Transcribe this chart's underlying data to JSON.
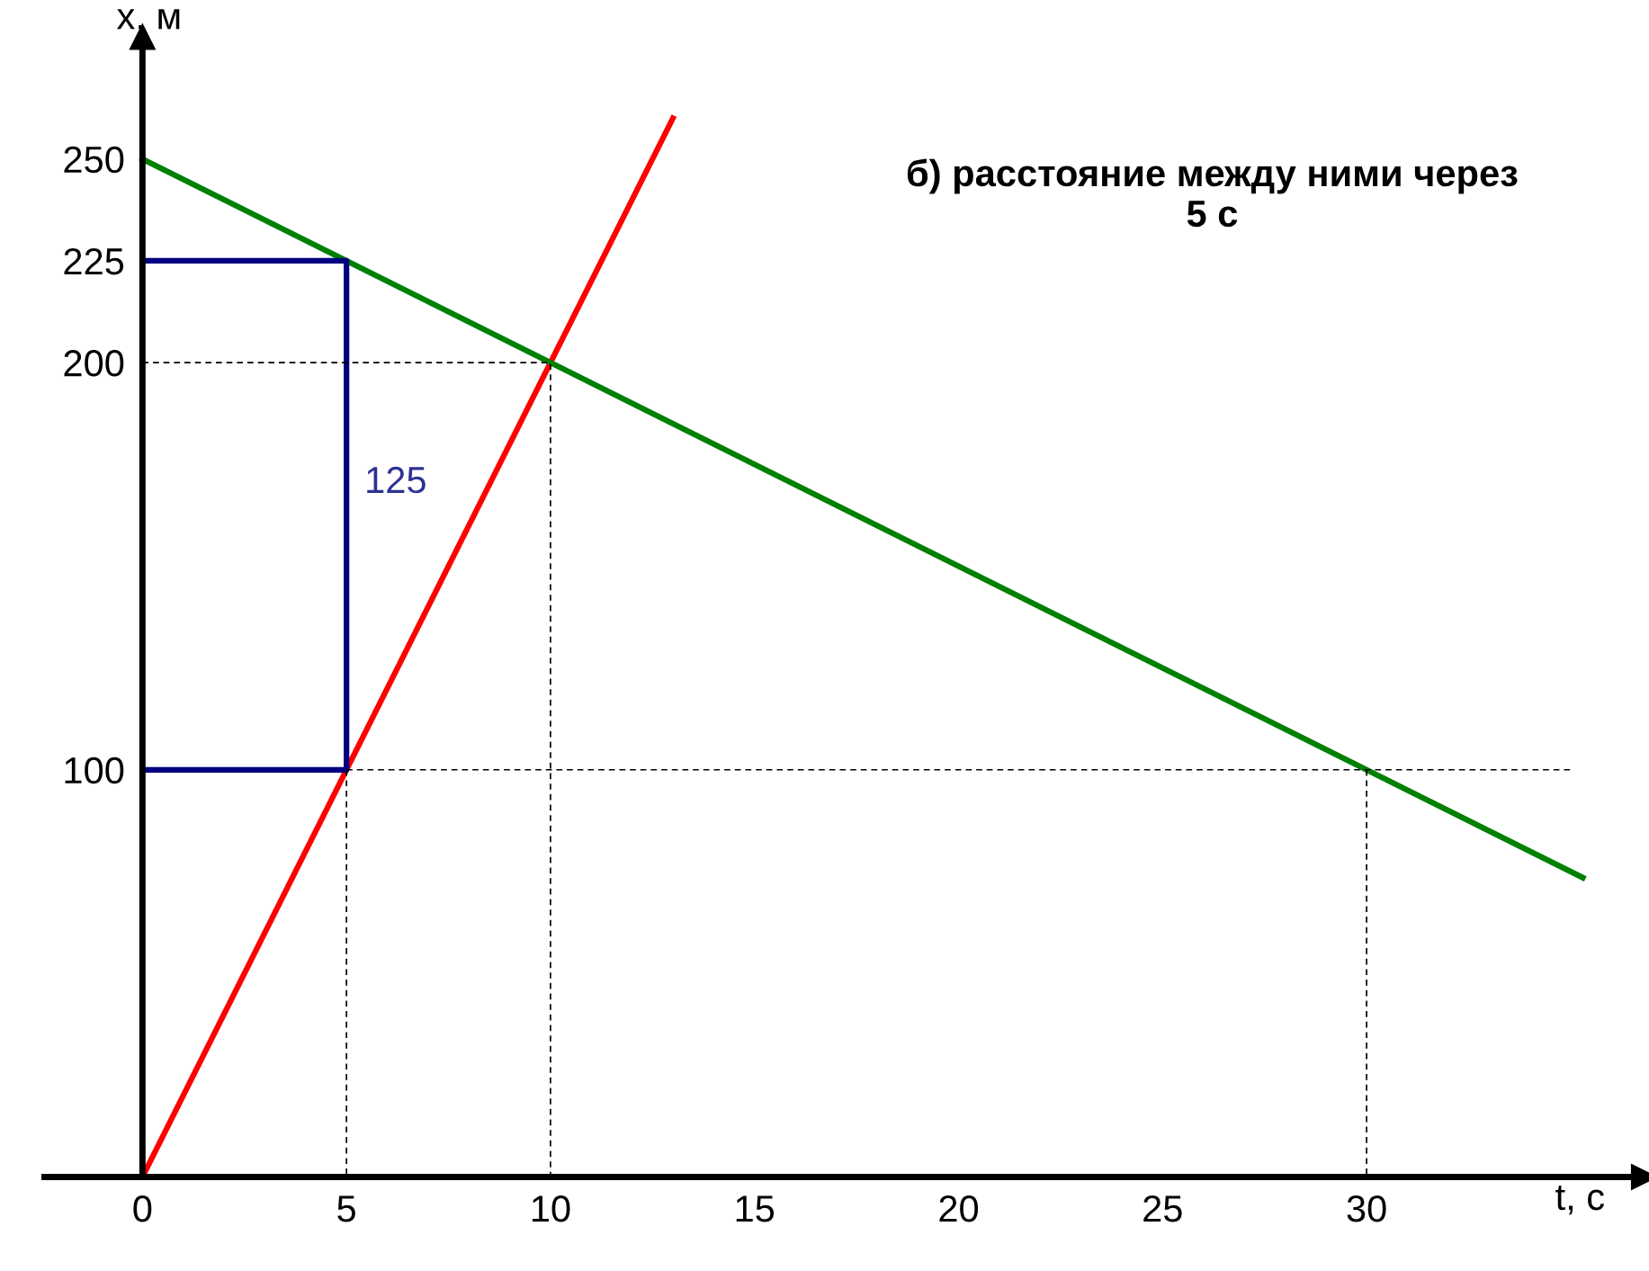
{
  "chart_data": {
    "type": "line",
    "title": "б) расстояние между ними через\n5 с",
    "xlabel": "t, с",
    "ylabel": "x, м",
    "xlim": [
      -2.4,
      36.8
    ],
    "ylim": [
      0,
      280
    ],
    "xticks": [
      0,
      5,
      10,
      15,
      20,
      25,
      30
    ],
    "yticks": [
      100,
      200,
      225,
      250
    ],
    "series": [
      {
        "color": "#ff0000",
        "x": [
          0,
          13
        ],
        "values": [
          0,
          260
        ]
      },
      {
        "color": "#008000",
        "x": [
          0,
          35.3
        ],
        "values": [
          250,
          73.5
        ]
      },
      {
        "color": "#000080",
        "x": [
          0,
          5,
          5,
          0
        ],
        "values": [
          225,
          225,
          100,
          100
        ]
      },
      {
        "color": "#000000",
        "line_style": "dashed",
        "x": [
          0,
          10,
          10
        ],
        "values": [
          200,
          200,
          0
        ]
      },
      {
        "color": "#000000",
        "line_style": "dashed",
        "x": [
          5,
          35
        ],
        "values": [
          100,
          100
        ]
      },
      {
        "color": "#000000",
        "line_style": "dashed",
        "x": [
          5,
          5
        ],
        "values": [
          100,
          0
        ]
      },
      {
        "color": "#000000",
        "line_style": "dashed",
        "x": [
          30,
          30
        ],
        "values": [
          100,
          0
        ]
      }
    ],
    "annotations": [
      "125"
    ],
    "grid": false,
    "legend": false
  }
}
